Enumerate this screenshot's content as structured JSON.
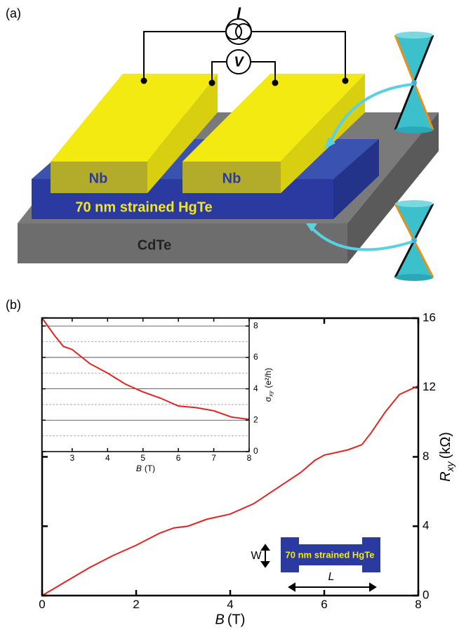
{
  "diagram": {
    "panel_label": "(a)",
    "current_label": "I",
    "voltage_label": "V",
    "nb_left": "Nb",
    "nb_right": "Nb",
    "layer_label": "70 nm strained HgTe",
    "substrate_label": "CdTe"
  },
  "panel_b_label": "(b)",
  "device": {
    "width_label": "W",
    "layer_label": "70 nm strained HgTe",
    "length_label": "L"
  },
  "chart_data": [
    {
      "type": "line",
      "x_label": "B",
      "x_label_unit": "(T)",
      "y_label": "R",
      "y_label_sub": "xy",
      "y_label_unit": "(kΩ)",
      "x": [
        0,
        0.5,
        1,
        1.5,
        2,
        2.5,
        2.8,
        3.1,
        3.5,
        4,
        4.5,
        5,
        5.5,
        5.8,
        6,
        6.5,
        6.8,
        7,
        7.3,
        7.6,
        8
      ],
      "values": [
        0,
        0.8,
        1.6,
        2.3,
        2.9,
        3.6,
        3.9,
        4.0,
        4.4,
        4.7,
        5.3,
        6.2,
        7.1,
        7.8,
        8.1,
        8.4,
        8.7,
        9.4,
        10.6,
        11.6,
        12.1
      ],
      "color": "#e02424",
      "xlim": [
        0,
        8
      ],
      "ylim": [
        0,
        16
      ],
      "xticks": [
        0,
        2,
        4,
        6,
        8
      ],
      "yticks": [
        0,
        4,
        8,
        12,
        16
      ]
    },
    {
      "type": "line",
      "x_label": "B",
      "x_label_unit": "(T)",
      "y_label": "σ",
      "y_label_sub": "xy",
      "y_label_unit": "(e²/h)",
      "x": [
        2.15,
        2.5,
        2.75,
        3,
        3.5,
        4,
        4.5,
        5,
        5.5,
        6,
        6.5,
        7,
        7.5,
        8
      ],
      "values": [
        8.5,
        7.4,
        6.7,
        6.5,
        5.6,
        5.0,
        4.3,
        3.8,
        3.4,
        2.9,
        2.8,
        2.6,
        2.2,
        2.05
      ],
      "color": "#e02424",
      "xlim": [
        2.15,
        8
      ],
      "ylim": [
        0,
        8.5
      ],
      "xticks": [
        3,
        4,
        5,
        6,
        7,
        8
      ],
      "yticks": [
        0,
        2,
        4,
        6,
        8
      ],
      "minor_yticks": [
        1,
        3,
        5,
        7
      ],
      "grid": true
    }
  ]
}
